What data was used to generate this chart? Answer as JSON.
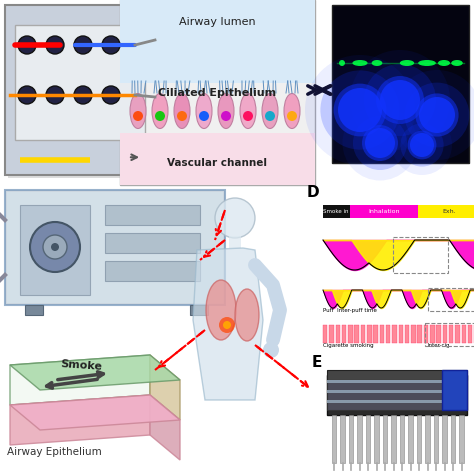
{
  "bg_color": "#ffffff",
  "panel_D_label": "D",
  "panel_E_label": "E",
  "smoke_in_label": "Smoke in",
  "inhalation_label": "Inhalation",
  "exhalation_label": "Exh.",
  "puff_label": "Puff  Inter-puff time",
  "cig_smoking_label": "Cigarette smoking",
  "inter_cig_label": "Inter-cig",
  "airway_lumen_label": "Airway lumen",
  "ciliated_epi_label": "Ciliated Epithelium",
  "vascular_label": "Vascular channel",
  "smoke_label": "Smoke",
  "airway_epi_label": "Airway Epithelium",
  "layout": {
    "chip_photo": [
      5,
      270,
      155,
      120
    ],
    "diagram": [
      130,
      255,
      175,
      155
    ],
    "fluor": [
      330,
      268,
      138,
      105
    ],
    "machine": [
      5,
      185,
      220,
      115
    ],
    "human": [
      155,
      155,
      165,
      270
    ],
    "smoke_chip": [
      5,
      50,
      175,
      130
    ],
    "panel_D": [
      305,
      165,
      162,
      160
    ],
    "panel_E": [
      310,
      45,
      158,
      115
    ]
  }
}
